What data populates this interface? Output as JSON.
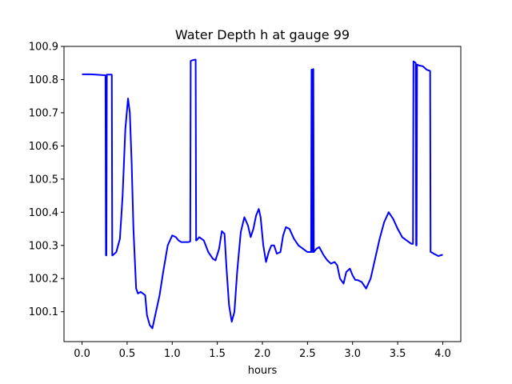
{
  "chart_data": {
    "type": "line",
    "title": "Water Depth h at gauge 99",
    "xlabel": "hours",
    "ylabel": "",
    "xlim": [
      -0.2,
      4.2
    ],
    "ylim": [
      100.01,
      100.9
    ],
    "xticks": [
      0.0,
      0.5,
      1.0,
      1.5,
      2.0,
      2.5,
      3.0,
      3.5,
      4.0
    ],
    "xtick_labels": [
      "0.0",
      "0.5",
      "1.0",
      "1.5",
      "2.0",
      "2.5",
      "3.0",
      "3.5",
      "4.0"
    ],
    "yticks": [
      100.1,
      100.2,
      100.3,
      100.4,
      100.5,
      100.6,
      100.7,
      100.8,
      100.9
    ],
    "ytick_labels": [
      "100.1",
      "100.2",
      "100.3",
      "100.4",
      "100.5",
      "100.6",
      "100.7",
      "100.8",
      "100.9"
    ],
    "grid": false,
    "legend": "none",
    "series": [
      {
        "color": "#0000ff",
        "x": [
          0.0,
          0.1,
          0.2,
          0.26,
          0.265,
          0.27,
          0.275,
          0.28,
          0.3,
          0.33,
          0.335,
          0.34,
          0.38,
          0.42,
          0.45,
          0.48,
          0.51,
          0.53,
          0.55,
          0.57,
          0.6,
          0.62,
          0.65,
          0.7,
          0.72,
          0.75,
          0.78,
          0.82,
          0.86,
          0.9,
          0.95,
          1.0,
          1.04,
          1.07,
          1.1,
          1.14,
          1.18,
          1.2,
          1.205,
          1.21,
          1.25,
          1.26,
          1.265,
          1.27,
          1.3,
          1.35,
          1.4,
          1.45,
          1.48,
          1.52,
          1.55,
          1.58,
          1.6,
          1.63,
          1.66,
          1.69,
          1.72,
          1.76,
          1.8,
          1.84,
          1.87,
          1.9,
          1.93,
          1.96,
          1.98,
          2.01,
          2.04,
          2.07,
          2.1,
          2.13,
          2.16,
          2.2,
          2.23,
          2.26,
          2.3,
          2.35,
          2.4,
          2.45,
          2.5,
          2.54,
          2.545,
          2.55,
          2.555,
          2.56,
          2.565,
          2.57,
          2.6,
          2.63,
          2.68,
          2.72,
          2.76,
          2.8,
          2.83,
          2.86,
          2.9,
          2.93,
          2.97,
          3.0,
          3.03,
          3.06,
          3.1,
          3.15,
          3.2,
          3.25,
          3.3,
          3.35,
          3.4,
          3.45,
          3.5,
          3.55,
          3.6,
          3.65,
          3.67,
          3.675,
          3.7,
          3.705,
          3.71,
          3.715,
          3.72,
          3.73,
          3.78,
          3.82,
          3.86,
          3.865,
          3.87,
          3.9,
          3.95,
          4.0
        ],
        "values": [
          100.816,
          100.816,
          100.814,
          100.813,
          100.27,
          100.27,
          100.815,
          100.815,
          100.815,
          100.815,
          100.27,
          100.27,
          100.28,
          100.32,
          100.45,
          100.65,
          100.743,
          100.7,
          100.55,
          100.35,
          100.17,
          100.155,
          100.16,
          100.15,
          100.09,
          100.06,
          100.05,
          100.1,
          100.15,
          100.22,
          100.3,
          100.33,
          100.325,
          100.315,
          100.31,
          100.31,
          100.31,
          100.312,
          100.856,
          100.857,
          100.86,
          100.86,
          100.315,
          100.315,
          100.325,
          100.315,
          100.28,
          100.26,
          100.255,
          100.29,
          100.343,
          100.335,
          100.24,
          100.12,
          100.07,
          100.1,
          100.22,
          100.34,
          100.385,
          100.36,
          100.325,
          100.35,
          100.39,
          100.41,
          100.385,
          100.3,
          100.25,
          100.28,
          100.3,
          100.3,
          100.275,
          100.28,
          100.33,
          100.355,
          100.35,
          100.32,
          100.3,
          100.29,
          100.28,
          100.28,
          100.83,
          100.83,
          100.28,
          100.28,
          100.832,
          100.28,
          100.29,
          100.295,
          100.27,
          100.255,
          100.245,
          100.25,
          100.24,
          100.2,
          100.185,
          100.22,
          100.23,
          100.21,
          100.196,
          100.195,
          100.19,
          100.17,
          100.2,
          100.26,
          100.32,
          100.37,
          100.4,
          100.38,
          100.35,
          100.325,
          100.315,
          100.305,
          100.305,
          100.855,
          100.85,
          100.3,
          100.3,
          100.845,
          100.845,
          100.843,
          100.84,
          100.83,
          100.826,
          100.28,
          100.28,
          100.275,
          100.268,
          100.272
        ]
      }
    ]
  }
}
